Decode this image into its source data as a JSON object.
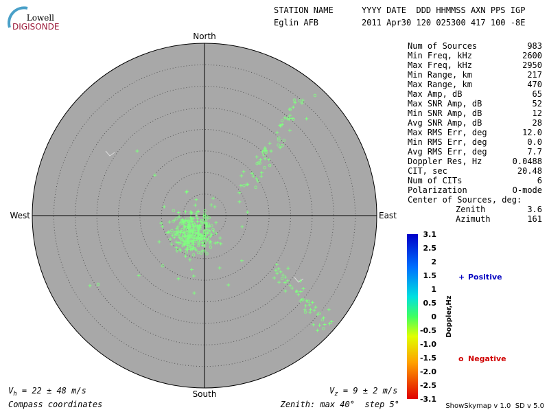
{
  "logo": {
    "top": "Lowell",
    "bottom": "DIGISONDE"
  },
  "header": {
    "row1": {
      "station": "STATION NAME",
      "fields": "YYYY DATE  DDD HHMMSS AXN PPS IGP"
    },
    "row2": {
      "station": "Eglin AFB",
      "fields": "2011 Apr30 120 025300 417 100 -8E"
    }
  },
  "compass": {
    "north": "North",
    "south": "South",
    "east": "East",
    "west": "West"
  },
  "stats": [
    [
      "Num of Sources",
      "983"
    ],
    [
      "Min Freq, kHz",
      "2600"
    ],
    [
      "Max Freq, kHz",
      "2950"
    ],
    [
      "Min Range, km",
      "217"
    ],
    [
      "Max Range, km",
      "470"
    ],
    [
      "Max Amp, dB",
      "65"
    ],
    [
      "Max SNR Amp, dB",
      "52"
    ],
    [
      "Min SNR Amp, dB",
      "12"
    ],
    [
      "Avg SNR Amp, dB",
      "28"
    ],
    [
      "Max RMS Err, deg",
      "12.0"
    ],
    [
      "Min RMS Err, deg",
      "0.0"
    ],
    [
      "Avg RMS Err, deg",
      "7.7"
    ],
    [
      "Doppler Res, Hz",
      "0.0488"
    ],
    [
      "CIT, sec",
      "20.48"
    ],
    [
      "Num of CITs",
      "6"
    ],
    [
      "Polarization",
      "O-mode"
    ]
  ],
  "center": {
    "title": "Center of Sources, deg:",
    "rows": [
      [
        "Zenith",
        "3.6"
      ],
      [
        "Azimuth",
        "161"
      ]
    ]
  },
  "colorbar": {
    "label": "Doppler,Hz",
    "ticks": [
      "3.1",
      "2.5",
      "2",
      "1.5",
      "1",
      "0.5",
      "0",
      "-0.5",
      "-1.0",
      "-1.5",
      "-2.0",
      "-2.5",
      "-3.1"
    ]
  },
  "legend": {
    "positive": {
      "symbol": "+",
      "text": "Positive"
    },
    "negative": {
      "symbol": "o",
      "text": "Negative"
    }
  },
  "footer": {
    "vh": {
      "symbol": "V",
      "subscript": "h",
      "text": " = 22 ± 48 m/s"
    },
    "vz": {
      "symbol": "V",
      "subscript": "z",
      "text": " = 9 ± 2 m/s"
    },
    "coords": "Compass coordinates",
    "zenith": "Zenith: max 40°  step 5°",
    "version": "ShowSkymap v 1.0  SD v 5.0"
  }
}
